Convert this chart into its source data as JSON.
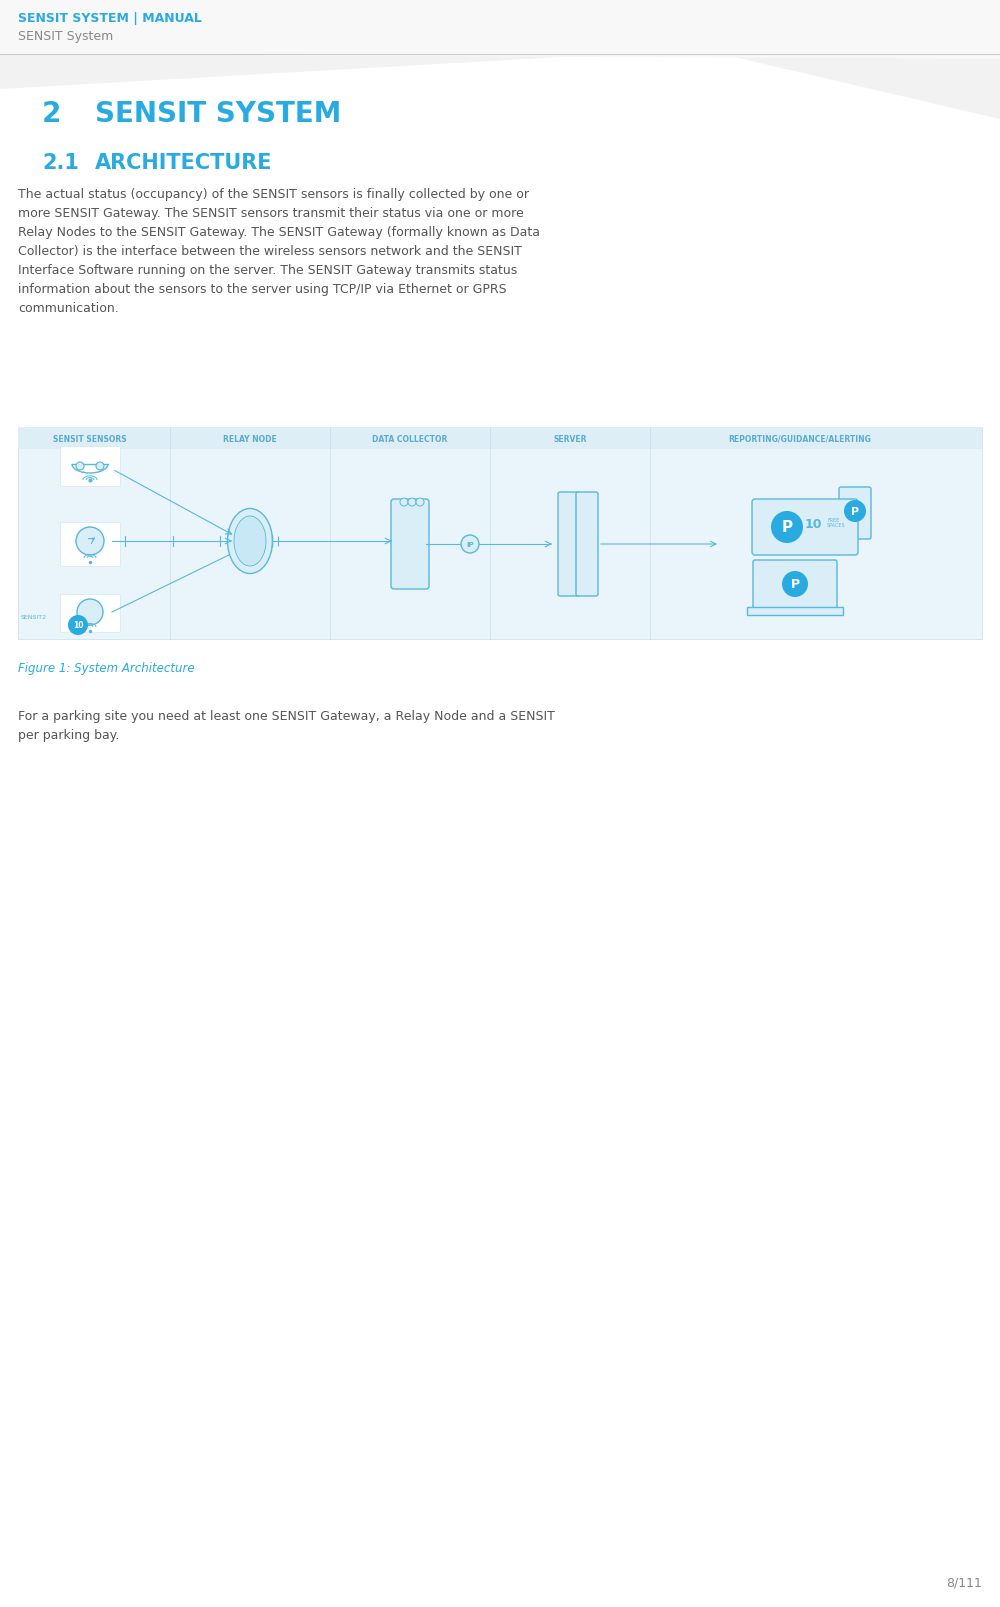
{
  "bg_color": "#ffffff",
  "header_line1": "SENSIT SYSTEM | MANUAL",
  "header_line2": "SENSIT System",
  "header_line1_color": "#29abe2",
  "header_line2_color": "#888888",
  "section_number": "2",
  "section_title": "SENSIT SYSTEM",
  "section_color": "#29abe2",
  "subsection_number": "2.1",
  "subsection_title": "ARCHITECTURE",
  "subsection_color": "#29abe2",
  "body_text_lines": [
    "The actual status (occupancy) of the SENSIT sensors is finally collected by one or",
    "more SENSIT Gateway. The SENSIT sensors transmit their status via one or more",
    "Relay Nodes to the SENSIT Gateway. The SENSIT Gateway (formally known as Data",
    "Collector) is the interface between the wireless sensors network and the SENSIT",
    "Interface Software running on the server. The SENSIT Gateway transmits status",
    "information about the sensors to the server using TCP/IP via Ethernet or GPRS",
    "communication."
  ],
  "body_color": "#555555",
  "figure_caption": "Figure 1: System Architecture",
  "figure_caption_color": "#29abe2",
  "footer_text_lines": [
    "For a parking site you need at least one SENSIT Gateway, a Relay Node and a SENSIT",
    "per parking bay."
  ],
  "footer_color": "#555555",
  "diagram_bg": "#eaf4fb",
  "diagram_top_band": "#ddeef7",
  "diagram_labels": [
    "SENSIT SENSORS",
    "RELAY NODE",
    "DATA COLLECTOR",
    "SERVER",
    "REPORTING/GUIDANCE/ALERTING"
  ],
  "diagram_label_color": "#5aabcc",
  "diagram_divider_color": "#c5dff0",
  "icon_color": "#5ab8d8",
  "icon_fill": "#daeef8",
  "page_number": "8/111",
  "page_number_color": "#888888",
  "divider_color": "#dddddd",
  "header_divider_color": "#cccccc"
}
